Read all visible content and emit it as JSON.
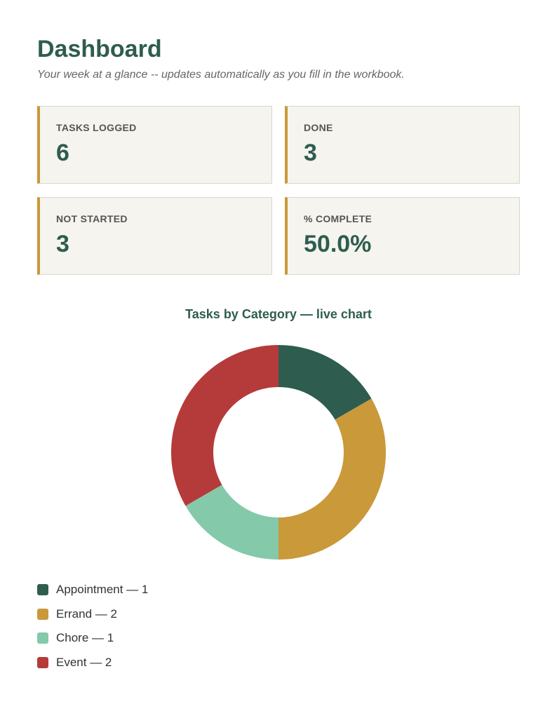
{
  "header": {
    "title": "Dashboard",
    "subtitle": "Your week at a glance -- updates automatically as you fill in the workbook."
  },
  "kpis": [
    {
      "label": "TASKS LOGGED",
      "value": "6"
    },
    {
      "label": "DONE",
      "value": "3"
    },
    {
      "label": "NOT STARTED",
      "value": "3"
    },
    {
      "label": "% COMPLETE",
      "value": "50.0%"
    }
  ],
  "colors": {
    "title": "#2e5d4f",
    "card_accent": "#c9993a",
    "card_background": "#f5f4ef"
  },
  "chart_data": {
    "type": "pie",
    "title": "Tasks by Category — live chart",
    "donut": true,
    "legend_position": "bottom-left",
    "categories": [
      "Appointment",
      "Errand",
      "Chore",
      "Event"
    ],
    "values": [
      1,
      2,
      1,
      2
    ],
    "colors": [
      "#2e5d4f",
      "#c9993a",
      "#84c9aa",
      "#b53a3a"
    ],
    "legend_labels": [
      "Appointment — 1",
      "Errand — 2",
      "Chore — 1",
      "Event — 2"
    ]
  }
}
